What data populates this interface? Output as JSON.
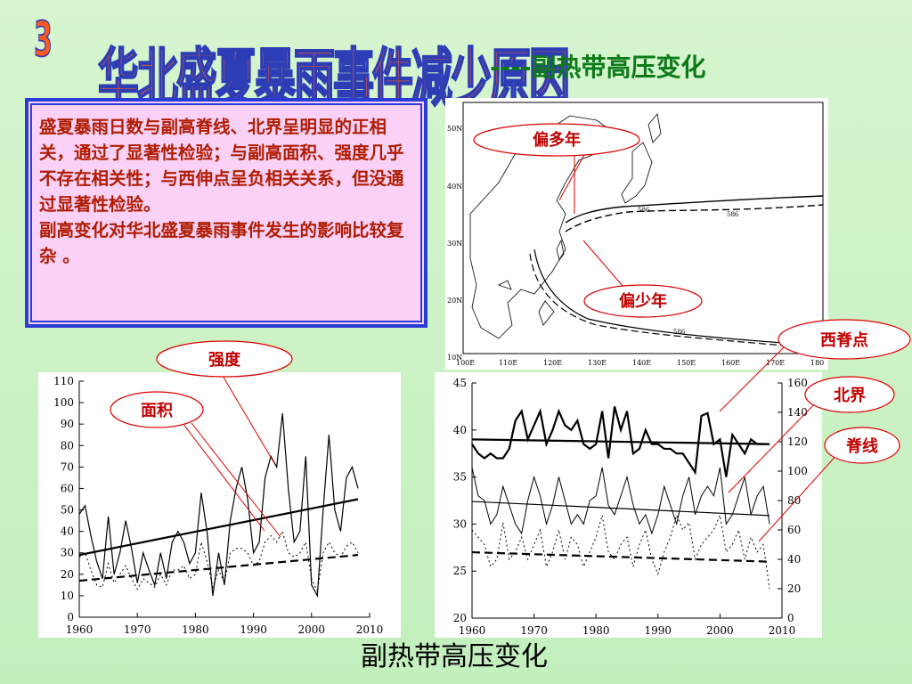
{
  "title": {
    "number": "3",
    "main": "华北盛夏暴雨事件减少原因",
    "sub": "----副热带高压变化"
  },
  "textbox": {
    "paragraph1": "盛夏暴雨日数与副高脊线、北界呈明显的正相关，通过了显著性检验；与副高面积、强度几乎不存在相关性；与西伸点呈负相关关系，但没通过显著性检验。",
    "paragraph2": "副高变化对华北盛夏暴雨事件发生的影响比较复杂 。"
  },
  "map": {
    "lat_labels": [
      "50N",
      "40N",
      "30N",
      "20N",
      "10N"
    ],
    "lon_labels": [
      "100E",
      "110E",
      "120E",
      "130E",
      "140E",
      "150E",
      "160E",
      "170E",
      "180"
    ],
    "contour_label": "586",
    "callouts": [
      "偏多年",
      "偏少年"
    ]
  },
  "callouts": {
    "strength": "强度",
    "area": "面积",
    "west_point": "西脊点",
    "north_edge": "北界",
    "ridge_line": "脊线"
  },
  "caption": "副热带高压变化",
  "chart_data": [
    {
      "type": "line",
      "xlim": [
        1960,
        2010
      ],
      "ylim": [
        0,
        110
      ],
      "x_ticks": [
        1960,
        1970,
        1980,
        1990,
        2000,
        2010
      ],
      "y_ticks": [
        0,
        10,
        20,
        30,
        40,
        50,
        60,
        70,
        80,
        90,
        100,
        110
      ],
      "years": [
        1960,
        1961,
        1962,
        1963,
        1964,
        1965,
        1966,
        1967,
        1968,
        1969,
        1970,
        1971,
        1972,
        1973,
        1974,
        1975,
        1976,
        1977,
        1978,
        1979,
        1980,
        1981,
        1982,
        1983,
        1984,
        1985,
        1986,
        1987,
        1988,
        1989,
        1990,
        1991,
        1992,
        1993,
        1994,
        1995,
        1996,
        1997,
        1998,
        1999,
        2000,
        2001,
        2002,
        2003,
        2004,
        2005,
        2006,
        2007,
        2008
      ],
      "series": [
        {
          "values": [
            48,
            52,
            38,
            26,
            18,
            47,
            20,
            30,
            45,
            32,
            16,
            30,
            22,
            15,
            30,
            18,
            35,
            40,
            35,
            25,
            30,
            58,
            40,
            10,
            30,
            15,
            45,
            60,
            70,
            55,
            30,
            35,
            65,
            75,
            70,
            95,
            60,
            35,
            40,
            75,
            15,
            10,
            50,
            85,
            50,
            40,
            65,
            70,
            60
          ]
        },
        {
          "values": [
            28,
            30,
            22,
            15,
            14,
            25,
            16,
            20,
            24,
            18,
            13,
            18,
            16,
            14,
            20,
            15,
            22,
            22,
            24,
            18,
            20,
            35,
            26,
            14,
            22,
            16,
            30,
            32,
            32,
            30,
            24,
            26,
            35,
            38,
            35,
            40,
            30,
            28,
            30,
            35,
            18,
            12,
            30,
            35,
            30,
            28,
            33,
            35,
            30
          ]
        }
      ],
      "trend_lines": [
        {
          "x": [
            1960,
            2008
          ],
          "y": [
            29,
            55
          ]
        },
        {
          "x": [
            1960,
            2008
          ],
          "y": [
            17,
            29
          ]
        }
      ]
    },
    {
      "type": "line",
      "xlim": [
        1960,
        2010
      ],
      "ylim_left": [
        20,
        45
      ],
      "ylim_right": [
        0,
        160
      ],
      "x_ticks": [
        1960,
        1970,
        1980,
        1990,
        2000,
        2010
      ],
      "y_ticks_left": [
        20,
        25,
        30,
        35,
        40,
        45
      ],
      "y_ticks_right": [
        0,
        20,
        40,
        60,
        80,
        100,
        120,
        140,
        160
      ],
      "years": [
        1960,
        1961,
        1962,
        1963,
        1964,
        1965,
        1966,
        1967,
        1968,
        1969,
        1970,
        1971,
        1972,
        1973,
        1974,
        1975,
        1976,
        1977,
        1978,
        1979,
        1980,
        1981,
        1982,
        1983,
        1984,
        1985,
        1986,
        1987,
        1988,
        1989,
        1990,
        1991,
        1992,
        1993,
        1994,
        1995,
        1996,
        1997,
        1998,
        1999,
        2000,
        2001,
        2002,
        2003,
        2004,
        2005,
        2006,
        2007,
        2008
      ],
      "series": [
        {
          "values": [
            38.5,
            37.5,
            37,
            37.5,
            37,
            37,
            38,
            41,
            42,
            39,
            40.5,
            42,
            38.5,
            40,
            42,
            40.5,
            40,
            41,
            38.5,
            38,
            38.5,
            42,
            37,
            42.5,
            40,
            42,
            37.5,
            38,
            40,
            38.5,
            38.5,
            38,
            38,
            37.5,
            37.5,
            36.5,
            35.5,
            41.5,
            41.8,
            38.5,
            39,
            35,
            39.5,
            38.5,
            37.5,
            39,
            38.5,
            38.5,
            38.5
          ]
        },
        {
          "values": [
            36,
            33,
            32.5,
            30,
            31,
            34,
            32,
            30,
            29,
            32.5,
            35,
            33,
            30,
            32,
            35,
            32.5,
            30,
            31,
            30,
            32.5,
            33,
            36,
            32,
            31,
            33,
            35,
            32,
            30,
            31,
            29,
            31,
            34,
            32,
            30,
            33,
            35,
            31,
            33,
            34,
            33,
            36,
            30,
            31,
            33,
            35,
            31,
            33,
            34,
            30
          ]
        },
        {
          "values": [
            60,
            55,
            50,
            35,
            40,
            65,
            40,
            45,
            55,
            40,
            50,
            60,
            35,
            45,
            60,
            40,
            55,
            50,
            35,
            45,
            55,
            70,
            45,
            40,
            50,
            55,
            35,
            50,
            60,
            40,
            30,
            45,
            55,
            70,
            60,
            65,
            40,
            50,
            55,
            60,
            70,
            45,
            50,
            60,
            40,
            55,
            45,
            50,
            20
          ]
        }
      ],
      "trend_lines": [
        {
          "x": [
            1960,
            2008
          ],
          "y": [
            39,
            38.5
          ]
        },
        {
          "x": [
            1960,
            2008
          ],
          "y": [
            32.4,
            30.9
          ]
        },
        {
          "x": [
            1960,
            2008
          ],
          "y": [
            27,
            26
          ]
        }
      ]
    }
  ]
}
